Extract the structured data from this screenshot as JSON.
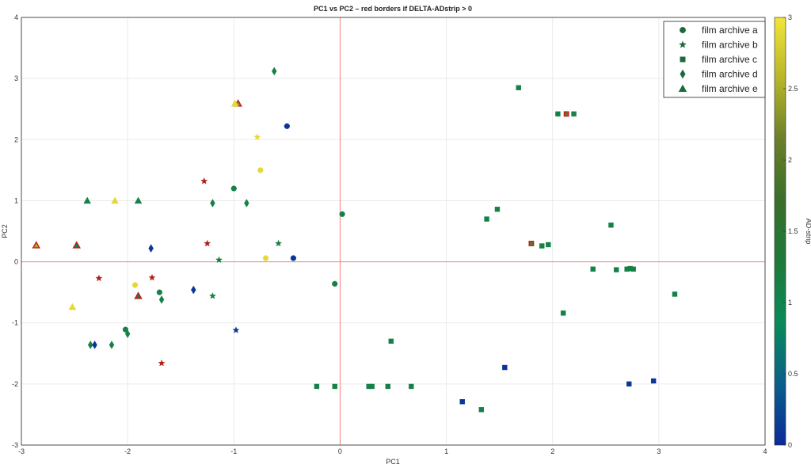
{
  "chart_data": {
    "type": "scatter",
    "title": "PC1 vs PC2 – red borders if DELTA-ADstrip > 0",
    "xlabel": "PC1",
    "ylabel": "PC2",
    "xlim": [
      -3,
      4
    ],
    "ylim": [
      -3,
      4
    ],
    "xticks": [
      -3,
      -2,
      -1,
      0,
      1,
      2,
      3,
      4
    ],
    "yticks": [
      -3,
      -2,
      -1,
      0,
      1,
      2,
      3,
      4
    ],
    "grid": true,
    "reference_lines": {
      "x": 0,
      "y": 0,
      "color": "#f08080"
    },
    "legend_position": "top-right",
    "colorbar": {
      "label": "AD-strip",
      "range": [
        0,
        3
      ],
      "ticks": [
        "0",
        "0.5",
        "1",
        "1.5",
        "2",
        "2.5",
        "3"
      ],
      "colormap": [
        "#0b2a9a",
        "#0a5f8a",
        "#0a8a5a",
        "#1e7a3a",
        "#3a6f2a",
        "#6a7f2a",
        "#b7b52a",
        "#f2e43a"
      ]
    },
    "series": [
      {
        "name": "film archive a",
        "marker": "circle",
        "points": [
          {
            "x": -1.0,
            "y": 1.2,
            "c": 1.1,
            "red": false
          },
          {
            "x": 0.02,
            "y": 0.78,
            "c": 1.1,
            "red": false
          },
          {
            "x": -0.05,
            "y": -0.36,
            "c": 1.1,
            "red": false
          },
          {
            "x": -1.7,
            "y": -0.5,
            "c": 1.1,
            "red": false
          },
          {
            "x": -2.02,
            "y": -1.11,
            "c": 1.1,
            "red": false
          },
          {
            "x": -0.5,
            "y": 2.22,
            "c": 0.1,
            "red": false
          },
          {
            "x": -0.44,
            "y": 0.06,
            "c": 0.1,
            "red": false
          },
          {
            "x": -0.75,
            "y": 1.5,
            "c": 2.9,
            "red": false
          },
          {
            "x": -0.7,
            "y": 0.06,
            "c": 2.9,
            "red": false
          },
          {
            "x": -1.93,
            "y": -0.38,
            "c": 2.9,
            "red": false
          }
        ]
      },
      {
        "name": "film archive b",
        "marker": "star",
        "points": [
          {
            "x": -1.28,
            "y": 1.32,
            "c": 2.0,
            "red": true
          },
          {
            "x": -1.25,
            "y": 0.3,
            "c": 2.0,
            "red": true
          },
          {
            "x": -2.27,
            "y": -0.27,
            "c": 2.0,
            "red": true
          },
          {
            "x": -1.77,
            "y": -0.26,
            "c": 2.0,
            "red": true
          },
          {
            "x": -1.68,
            "y": -1.66,
            "c": 2.0,
            "red": true
          },
          {
            "x": -0.58,
            "y": 0.3,
            "c": 1.2,
            "red": false
          },
          {
            "x": -1.14,
            "y": 0.03,
            "c": 1.2,
            "red": false
          },
          {
            "x": -1.2,
            "y": -0.56,
            "c": 1.2,
            "red": false
          },
          {
            "x": -0.98,
            "y": -1.12,
            "c": 0.1,
            "red": false
          },
          {
            "x": -0.78,
            "y": 2.04,
            "c": 2.9,
            "red": false
          }
        ]
      },
      {
        "name": "film archive c",
        "marker": "square",
        "points": [
          {
            "x": 1.68,
            "y": 2.85,
            "c": 1.1,
            "red": false
          },
          {
            "x": 2.05,
            "y": 2.42,
            "c": 1.1,
            "red": false
          },
          {
            "x": 2.13,
            "y": 2.42,
            "c": 2.0,
            "red": true
          },
          {
            "x": 2.2,
            "y": 2.42,
            "c": 1.1,
            "red": false
          },
          {
            "x": 1.38,
            "y": 0.7,
            "c": 1.1,
            "red": false
          },
          {
            "x": 1.48,
            "y": 0.86,
            "c": 1.1,
            "red": false
          },
          {
            "x": 1.8,
            "y": 0.3,
            "c": 2.0,
            "red": true
          },
          {
            "x": 1.9,
            "y": 0.26,
            "c": 1.1,
            "red": false
          },
          {
            "x": 1.96,
            "y": 0.28,
            "c": 1.1,
            "red": false
          },
          {
            "x": 2.55,
            "y": 0.6,
            "c": 1.1,
            "red": false
          },
          {
            "x": 2.38,
            "y": -0.12,
            "c": 1.1,
            "red": false
          },
          {
            "x": 2.6,
            "y": -0.13,
            "c": 1.1,
            "red": false
          },
          {
            "x": 2.7,
            "y": -0.12,
            "c": 1.1,
            "red": false
          },
          {
            "x": 2.73,
            "y": -0.11,
            "c": 1.1,
            "red": false
          },
          {
            "x": 2.76,
            "y": -0.12,
            "c": 1.1,
            "red": false
          },
          {
            "x": 3.15,
            "y": -0.53,
            "c": 1.1,
            "red": false
          },
          {
            "x": 2.1,
            "y": -0.84,
            "c": 1.1,
            "red": false
          },
          {
            "x": 0.48,
            "y": -1.3,
            "c": 1.1,
            "red": false
          },
          {
            "x": -0.22,
            "y": -2.04,
            "c": 1.1,
            "red": false
          },
          {
            "x": -0.05,
            "y": -2.04,
            "c": 1.1,
            "red": false
          },
          {
            "x": 0.27,
            "y": -2.04,
            "c": 1.1,
            "red": false
          },
          {
            "x": 0.3,
            "y": -2.04,
            "c": 1.1,
            "red": false
          },
          {
            "x": 0.45,
            "y": -2.04,
            "c": 1.1,
            "red": false
          },
          {
            "x": 0.67,
            "y": -2.04,
            "c": 1.1,
            "red": false
          },
          {
            "x": 1.33,
            "y": -2.42,
            "c": 1.1,
            "red": false
          },
          {
            "x": 1.55,
            "y": -1.73,
            "c": 0.1,
            "red": false
          },
          {
            "x": 1.15,
            "y": -2.29,
            "c": 0.1,
            "red": false
          },
          {
            "x": 2.72,
            "y": -2.0,
            "c": 0.1,
            "red": false
          },
          {
            "x": 2.95,
            "y": -1.95,
            "c": 0.1,
            "red": false
          }
        ]
      },
      {
        "name": "film archive d",
        "marker": "diamond",
        "points": [
          {
            "x": -0.62,
            "y": 3.12,
            "c": 1.1,
            "red": false
          },
          {
            "x": -1.2,
            "y": 0.96,
            "c": 1.1,
            "red": false
          },
          {
            "x": -0.88,
            "y": 0.96,
            "c": 1.1,
            "red": false
          },
          {
            "x": -1.68,
            "y": -0.62,
            "c": 1.1,
            "red": false
          },
          {
            "x": -2.15,
            "y": -1.36,
            "c": 1.1,
            "red": false
          },
          {
            "x": -2.35,
            "y": -1.36,
            "c": 1.1,
            "red": false
          },
          {
            "x": -2.0,
            "y": -1.18,
            "c": 1.1,
            "red": false
          },
          {
            "x": -1.78,
            "y": 0.22,
            "c": 0.1,
            "red": false
          },
          {
            "x": -1.38,
            "y": -0.46,
            "c": 0.1,
            "red": false
          },
          {
            "x": -2.31,
            "y": -1.36,
            "c": 0.1,
            "red": false
          }
        ]
      },
      {
        "name": "film archive e",
        "marker": "triangle",
        "points": [
          {
            "x": -0.96,
            "y": 2.59,
            "c": 2.3,
            "red": true
          },
          {
            "x": -0.99,
            "y": 2.59,
            "c": 2.9,
            "red": false
          },
          {
            "x": -2.38,
            "y": 1.0,
            "c": 1.1,
            "red": false
          },
          {
            "x": -2.12,
            "y": 1.0,
            "c": 2.9,
            "red": false
          },
          {
            "x": -1.9,
            "y": 1.0,
            "c": 1.1,
            "red": false
          },
          {
            "x": -2.48,
            "y": 0.27,
            "c": 1.1,
            "red": true
          },
          {
            "x": -2.86,
            "y": 0.27,
            "c": 2.5,
            "red": true
          },
          {
            "x": -1.9,
            "y": -0.56,
            "c": 1.3,
            "red": true
          },
          {
            "x": -2.52,
            "y": -0.74,
            "c": 2.9,
            "red": false
          }
        ]
      }
    ]
  }
}
